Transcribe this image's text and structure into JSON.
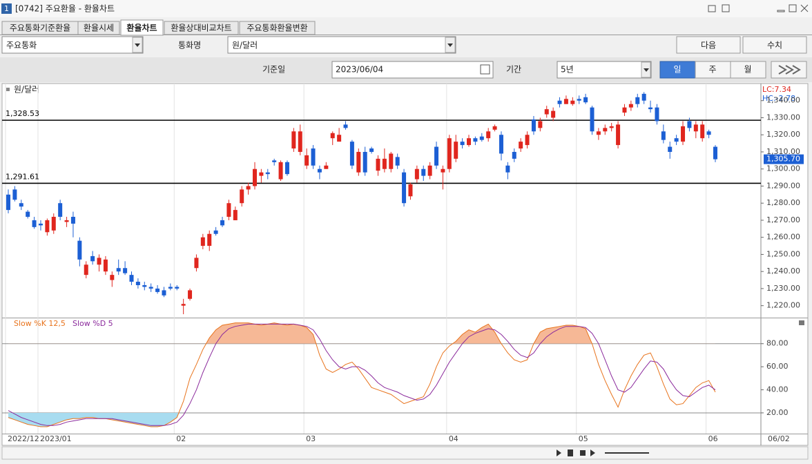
{
  "window": {
    "icon": "1",
    "title": "[0742] 주요환율 - 환율차트"
  },
  "tabs": [
    "주요통화기준환율",
    "환율시세",
    "환율차트",
    "환율상대비교차트",
    "주요통화환율변환"
  ],
  "controls": {
    "market": "주요통화",
    "currency_label": "통화명",
    "currency": "원/달러",
    "next": "다음",
    "values": "수치",
    "date_label": "기준일",
    "date": "2023/06/04",
    "period_label": "기간",
    "period": "5년",
    "day": "일",
    "week": "주",
    "month": "월"
  },
  "chart_data": [
    {
      "type": "candlestick",
      "name": "원/달러",
      "categories": [
        "2022/12",
        null,
        null,
        null,
        null,
        "2023/01",
        null,
        null,
        null,
        null,
        null,
        null,
        null,
        null,
        null,
        null,
        null,
        null,
        null,
        null,
        null,
        null,
        null,
        null,
        null,
        null,
        "02",
        null,
        null,
        null,
        null,
        null,
        null,
        null,
        null,
        null,
        null,
        null,
        null,
        null,
        null,
        null,
        null,
        null,
        null,
        null,
        "03",
        null,
        null,
        null,
        null,
        null,
        null,
        null,
        null,
        null,
        null,
        null,
        null,
        null,
        null,
        null,
        null,
        null,
        null,
        null,
        null,
        null,
        "04",
        null,
        null,
        null,
        null,
        null,
        null,
        null,
        null,
        null,
        null,
        null,
        null,
        null,
        null,
        null,
        null,
        null,
        null,
        null,
        "05",
        null,
        null,
        null,
        null,
        null,
        null,
        null,
        null,
        null,
        null,
        null,
        null,
        null,
        null,
        null,
        null,
        null,
        null,
        null,
        "06",
        null
      ],
      "last_date": "06/02",
      "open": [
        1285,
        1288,
        1280,
        1275,
        1270,
        1268,
        1263,
        1264,
        1280,
        1269,
        1272,
        1258,
        1238,
        1249,
        1244,
        1240,
        1235,
        1242,
        1242,
        1238,
        1234,
        1232,
        1231,
        1230,
        1229,
        1231,
        1231,
        1220,
        1224,
        1242,
        1255,
        1255,
        1264,
        1270,
        1272,
        1270,
        1280,
        1288,
        1290,
        1296,
        1298,
        1305,
        1294,
        1304,
        1312,
        1310,
        1302,
        1312,
        1300,
        1300,
        1318,
        1316,
        1326,
        1316,
        1298,
        1310,
        1312,
        1299,
        1300,
        1300,
        1307,
        1298,
        1284,
        1294,
        1300,
        1296,
        1313,
        1298,
        1300,
        1306,
        1316,
        1314,
        1318,
        1319,
        1318,
        1323,
        1320,
        1302,
        1310,
        1312,
        1314,
        1329,
        1324,
        1332,
        1330,
        1340,
        1338,
        1338,
        1341,
        1342,
        1336,
        1320,
        1322,
        1324,
        1314,
        1333,
        1336,
        1342,
        1344,
        1336,
        1336,
        1322,
        1313,
        1318,
        1316,
        1328,
        1322,
        1318,
        1322,
        1313
      ],
      "high": [
        1288,
        1290,
        1282,
        1276,
        1272,
        1270,
        1271,
        1274,
        1282,
        1272,
        1275,
        1260,
        1246,
        1252,
        1250,
        1249,
        1240,
        1247,
        1246,
        1240,
        1236,
        1234,
        1233,
        1232,
        1231,
        1233,
        1232,
        1224,
        1230,
        1250,
        1262,
        1264,
        1266,
        1272,
        1282,
        1278,
        1290,
        1292,
        1304,
        1300,
        1300,
        1306,
        1305,
        1305,
        1324,
        1326,
        1312,
        1314,
        1302,
        1304,
        1322,
        1324,
        1328,
        1317,
        1312,
        1313,
        1313,
        1308,
        1312,
        1310,
        1309,
        1300,
        1292,
        1302,
        1302,
        1304,
        1316,
        1302,
        1320,
        1320,
        1318,
        1320,
        1319,
        1321,
        1324,
        1326,
        1322,
        1304,
        1312,
        1318,
        1322,
        1331,
        1330,
        1337,
        1336,
        1342,
        1343,
        1342,
        1343,
        1344,
        1337,
        1324,
        1326,
        1327,
        1328,
        1338,
        1340,
        1344,
        1345,
        1340,
        1338,
        1326,
        1316,
        1320,
        1328,
        1330,
        1328,
        1328,
        1323,
        1314
      ],
      "low": [
        1274,
        1281,
        1276,
        1271,
        1265,
        1264,
        1261,
        1262,
        1270,
        1266,
        1260,
        1243,
        1236,
        1244,
        1240,
        1238,
        1231,
        1238,
        1238,
        1232,
        1230,
        1229,
        1228,
        1227,
        1225,
        1229,
        1229,
        1215,
        1223,
        1240,
        1253,
        1252,
        1261,
        1266,
        1270,
        1270,
        1278,
        1285,
        1288,
        1292,
        1294,
        1302,
        1293,
        1296,
        1310,
        1308,
        1300,
        1300,
        1294,
        1300,
        1314,
        1316,
        1323,
        1300,
        1296,
        1296,
        1309,
        1296,
        1298,
        1298,
        1300,
        1278,
        1282,
        1292,
        1293,
        1294,
        1300,
        1288,
        1298,
        1304,
        1312,
        1313,
        1314,
        1316,
        1316,
        1322,
        1305,
        1294,
        1304,
        1310,
        1312,
        1320,
        1322,
        1330,
        1328,
        1336,
        1338,
        1337,
        1338,
        1338,
        1320,
        1317,
        1320,
        1322,
        1312,
        1331,
        1334,
        1336,
        1338,
        1333,
        1326,
        1315,
        1306,
        1314,
        1314,
        1322,
        1318,
        1316,
        1318,
        1304
      ],
      "close": [
        1276,
        1282,
        1278,
        1272,
        1266,
        1267,
        1270,
        1272,
        1272,
        1270,
        1268,
        1247,
        1244,
        1246,
        1248,
        1247,
        1238,
        1240,
        1239,
        1234,
        1232,
        1231,
        1230,
        1228,
        1226,
        1230,
        1230,
        1221,
        1229,
        1248,
        1260,
        1262,
        1262,
        1267,
        1280,
        1276,
        1288,
        1290,
        1300,
        1298,
        1297,
        1304,
        1304,
        1297,
        1322,
        1322,
        1308,
        1302,
        1298,
        1302,
        1321,
        1320,
        1324,
        1302,
        1310,
        1298,
        1310,
        1306,
        1306,
        1309,
        1302,
        1280,
        1291,
        1300,
        1296,
        1302,
        1302,
        1300,
        1318,
        1316,
        1314,
        1318,
        1316,
        1317,
        1322,
        1325,
        1309,
        1298,
        1306,
        1316,
        1320,
        1322,
        1328,
        1335,
        1334,
        1338,
        1341,
        1340,
        1340,
        1339,
        1322,
        1322,
        1324,
        1325,
        1326,
        1336,
        1338,
        1338,
        1340,
        1335,
        1328,
        1317,
        1310,
        1316,
        1325,
        1324,
        1326,
        1326,
        1320,
        1305.7
      ],
      "up_color": "#e0261e",
      "down_color": "#1c5fd4",
      "ylim": [
        1213,
        1350
      ],
      "yticks": [
        {
          "value": 1220,
          "label": "1,220.00"
        },
        {
          "value": 1230,
          "label": "1,230.00"
        },
        {
          "value": 1240,
          "label": "1,240.00"
        },
        {
          "value": 1250,
          "label": "1,250.00"
        },
        {
          "value": 1260,
          "label": "1,260.00"
        },
        {
          "value": 1270,
          "label": "1,270.00"
        },
        {
          "value": 1280,
          "label": "1,280.00"
        },
        {
          "value": 1290,
          "label": "1,290.00"
        },
        {
          "value": 1300,
          "label": "1,300.00"
        },
        {
          "value": 1310,
          "label": "1,310.00"
        },
        {
          "value": 1320,
          "label": "1,320.00"
        },
        {
          "value": 1330,
          "label": "1,330.00"
        },
        {
          "value": 1340,
          "label": "1,340.00"
        }
      ],
      "hlines": [
        {
          "value": 1328.53,
          "label": "1,328.53"
        },
        {
          "value": 1291.61,
          "label": "1,291.61"
        }
      ],
      "current_price": {
        "value": 1305.7,
        "label": "1,305.70"
      },
      "annotations": [
        "LC:7.34",
        "HC:-2.78"
      ]
    },
    {
      "type": "line",
      "series": [
        {
          "name": "Slow %K 12,5",
          "color": "#e8731c",
          "values": [
            16,
            14,
            12,
            10,
            9,
            8,
            8,
            10,
            12,
            14,
            15,
            15,
            16,
            16,
            15,
            15,
            14,
            13,
            12,
            11,
            10,
            9,
            8,
            8,
            9,
            12,
            16,
            30,
            50,
            62,
            75,
            85,
            92,
            96,
            97,
            98,
            98,
            98,
            97,
            96,
            97,
            98,
            97,
            96,
            97,
            96,
            94,
            88,
            70,
            58,
            55,
            58,
            62,
            64,
            58,
            50,
            42,
            40,
            38,
            36,
            32,
            28,
            30,
            32,
            34,
            45,
            60,
            72,
            78,
            82,
            88,
            92,
            90,
            94,
            97,
            90,
            80,
            72,
            66,
            64,
            66,
            80,
            90,
            93,
            94,
            95,
            96,
            96,
            95,
            93,
            80,
            62,
            48,
            36,
            25,
            40,
            52,
            62,
            70,
            72,
            60,
            45,
            32,
            27,
            28,
            35,
            42,
            46,
            48,
            38
          ]
        },
        {
          "name": "Slow %D 5",
          "color": "#8b2a9c",
          "values": [
            22,
            19,
            16,
            14,
            12,
            10,
            9,
            9,
            10,
            12,
            13,
            14,
            15,
            15,
            15,
            15,
            15,
            14,
            13,
            12,
            11,
            10,
            9,
            9,
            9,
            10,
            12,
            18,
            28,
            40,
            55,
            68,
            80,
            88,
            93,
            95,
            96,
            97,
            97,
            97,
            97,
            97,
            97,
            97,
            97,
            96,
            95,
            92,
            84,
            74,
            66,
            60,
            58,
            60,
            60,
            57,
            52,
            46,
            42,
            40,
            38,
            35,
            33,
            31,
            32,
            36,
            44,
            54,
            64,
            72,
            80,
            86,
            89,
            91,
            93,
            92,
            88,
            82,
            75,
            70,
            68,
            72,
            80,
            86,
            90,
            93,
            95,
            95,
            95,
            94,
            89,
            80,
            66,
            52,
            40,
            38,
            42,
            50,
            58,
            65,
            64,
            58,
            48,
            40,
            35,
            34,
            38,
            42,
            44,
            40
          ]
        }
      ],
      "ylim": [
        2,
        102
      ],
      "yticks": [
        {
          "value": 20,
          "label": "20.00"
        },
        {
          "value": 40,
          "label": "40.00"
        },
        {
          "value": 60,
          "label": "60.00"
        },
        {
          "value": 80,
          "label": "80.00"
        }
      ],
      "hlines": [
        80,
        20
      ],
      "over_color": "#f6b896",
      "under_color": "#a8dcf0"
    }
  ]
}
